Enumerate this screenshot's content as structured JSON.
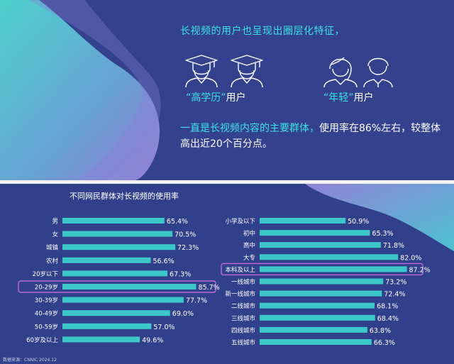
{
  "headline": "长视频的用户也呈现出圈层化特征，",
  "groups": {
    "edu_highlight": "“高学历”",
    "edu_suffix": "用户",
    "young_highlight": "“年轻”",
    "young_suffix": "用户"
  },
  "body": {
    "highlight": "一直是长视频内容的主要群体，",
    "rest": "使用率在86%左右，较整体高出近20个百分点。"
  },
  "chart_title": "不同网民群体对长视频的使用率",
  "source": "数据来源：CNNIC 2024.12",
  "colors": {
    "bar": "#3cc8c8",
    "highlight_border": "#c06ad8",
    "accent": "#3de0e6",
    "text": "#ffffff"
  },
  "chart_data": [
    {
      "type": "bar",
      "orientation": "horizontal",
      "categories": [
        "男",
        "女",
        "城镇",
        "农村",
        "20岁以下",
        "20-29岁",
        "30-39岁",
        "40-49岁",
        "50-59岁",
        "60岁及以上"
      ],
      "values": [
        65.4,
        70.5,
        72.3,
        56.6,
        67.3,
        85.7,
        77.7,
        69.0,
        57.0,
        49.6
      ],
      "labels": [
        "65.4%",
        "70.5%",
        "72.3%",
        "56.6%",
        "67.3%",
        "85.7%",
        "77.7%",
        "69.0%",
        "57.0%",
        "49.6%"
      ],
      "highlighted": [
        "20-29岁"
      ],
      "xlim": [
        0,
        100
      ],
      "grid": false
    },
    {
      "type": "bar",
      "orientation": "horizontal",
      "categories": [
        "小学及以下",
        "初中",
        "高中",
        "大专",
        "本科及以上",
        "一线城市",
        "新一线城市",
        "二线城市",
        "三线城市",
        "四线城市",
        "五线城市"
      ],
      "values": [
        50.9,
        65.3,
        71.8,
        82.0,
        87.2,
        73.2,
        72.4,
        68.1,
        68.4,
        63.8,
        66.3
      ],
      "labels": [
        "50.9%",
        "65.3%",
        "71.8%",
        "82.0%",
        "87.2%",
        "73.2%",
        "72.4%",
        "68.1%",
        "68.4%",
        "63.8%",
        "66.3%"
      ],
      "highlighted": [
        "本科及以上"
      ],
      "xlim": [
        0,
        100
      ],
      "grid": false
    }
  ]
}
